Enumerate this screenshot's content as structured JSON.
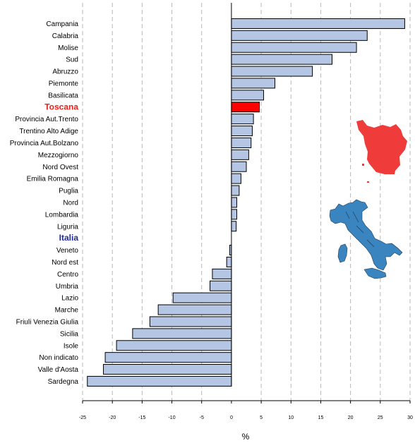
{
  "chart_data": {
    "type": "bar",
    "orientation": "horizontal",
    "xlabel": "%",
    "xlim": [
      -25,
      30
    ],
    "xticks": [
      -25,
      -20,
      -15,
      -10,
      -5,
      0,
      5,
      10,
      15,
      20,
      25,
      30
    ],
    "grid": "vertical-dashed",
    "categories": [
      "Campania",
      "Calabria",
      "Molise",
      "Sud",
      "Abruzzo",
      "Piemonte",
      "Basilicata",
      "Toscana",
      "Provincia Aut.Trento",
      "Trentino Alto Adige",
      "Provincia Aut.Bolzano",
      "Mezzogiorno",
      "Nord Ovest",
      "Emilia Romagna",
      "Puglia",
      "Nord",
      "Lombardia",
      "Liguria",
      "Italia",
      "Veneto",
      "Nord est",
      "Centro",
      "Umbria",
      "Lazio",
      "Marche",
      "Friuli Venezia Giulia",
      "Sicilia",
      "Isole",
      "Non indicato",
      "Valle d'Aosta",
      "Sardegna"
    ],
    "values": [
      29.1,
      22.8,
      21.0,
      16.9,
      13.6,
      7.3,
      5.4,
      4.7,
      3.7,
      3.5,
      3.3,
      2.9,
      2.5,
      1.6,
      1.3,
      0.9,
      0.9,
      0.8,
      0.0,
      -0.3,
      -0.8,
      -3.2,
      -3.6,
      -9.8,
      -12.3,
      -13.7,
      -16.6,
      -19.3,
      -21.2,
      -21.5,
      -24.2
    ],
    "highlights": {
      "Toscana": "red",
      "Italia": "blue"
    },
    "colors": {
      "bar": "#b4c6e4",
      "bar_highlight": "#ff0000",
      "label_highlight_red": "#e8211b",
      "label_highlight_blue": "#1f2a9e",
      "map_toscana": "#ef3b39",
      "map_italia": "#3a85c0"
    },
    "inset_maps": [
      "toscana-map-icon",
      "italia-map-icon"
    ]
  }
}
